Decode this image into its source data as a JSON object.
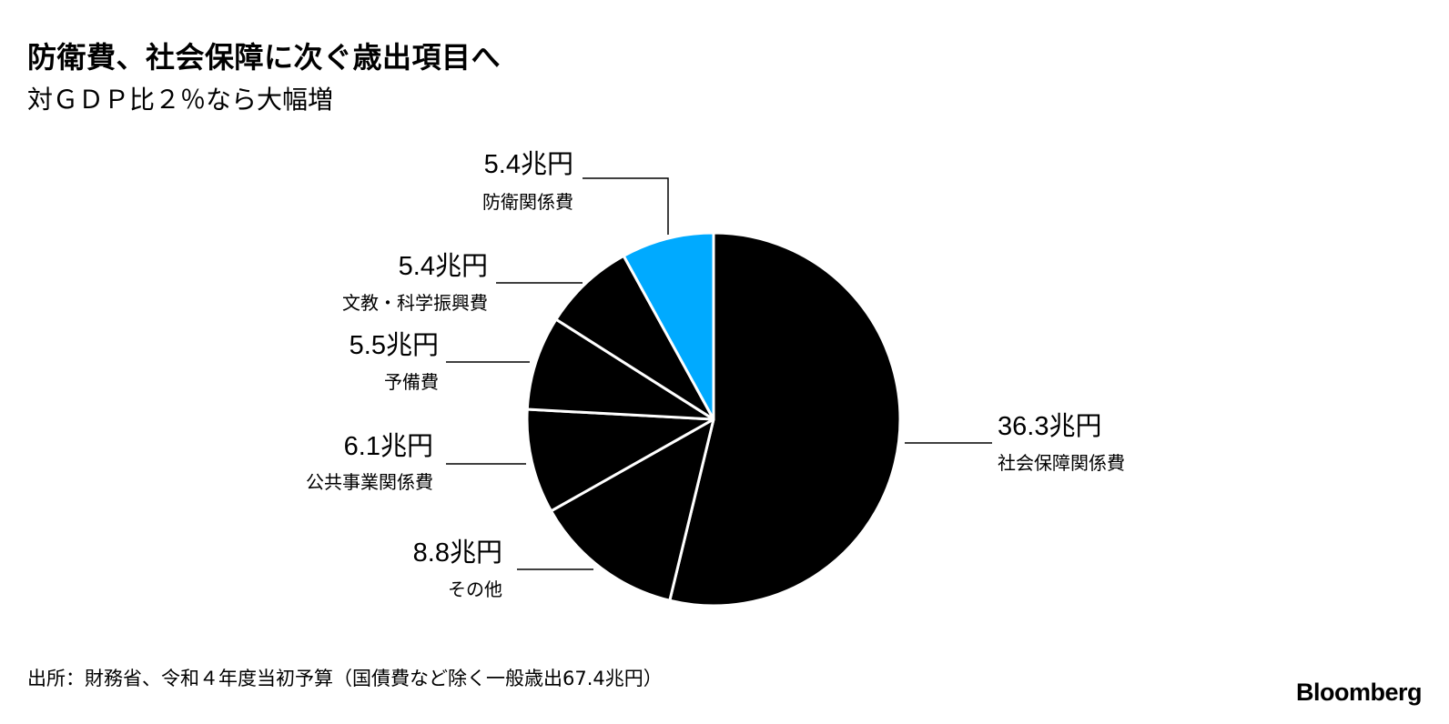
{
  "header": {
    "title": "防衛費、社会保障に次ぐ歳出項目へ",
    "subtitle": "対ＧＤＰ比２％なら大幅増"
  },
  "footer": {
    "source": "出所：財務省、令和４年度当初予算（国債費など除く一般歳出67.4兆円）",
    "brand": "Bloomberg"
  },
  "chart_data": {
    "type": "pie",
    "unit": "兆円",
    "total": 67.4,
    "slices": [
      {
        "label": "社会保障関係費",
        "value": 36.3,
        "value_label": "36.3兆円",
        "color": "#000000"
      },
      {
        "label": "その他",
        "value": 8.8,
        "value_label": "8.8兆円",
        "color": "#000000"
      },
      {
        "label": "公共事業関係費",
        "value": 6.1,
        "value_label": "6.1兆円",
        "color": "#000000"
      },
      {
        "label": "予備費",
        "value": 5.5,
        "value_label": "5.5兆円",
        "color": "#000000"
      },
      {
        "label": "文教・科学振興費",
        "value": 5.4,
        "value_label": "5.4兆円",
        "color": "#000000"
      },
      {
        "label": "防衛関係費",
        "value": 5.4,
        "value_label": "5.4兆円",
        "color": "#00aaff"
      }
    ],
    "slice_border_color": "#ffffff"
  }
}
